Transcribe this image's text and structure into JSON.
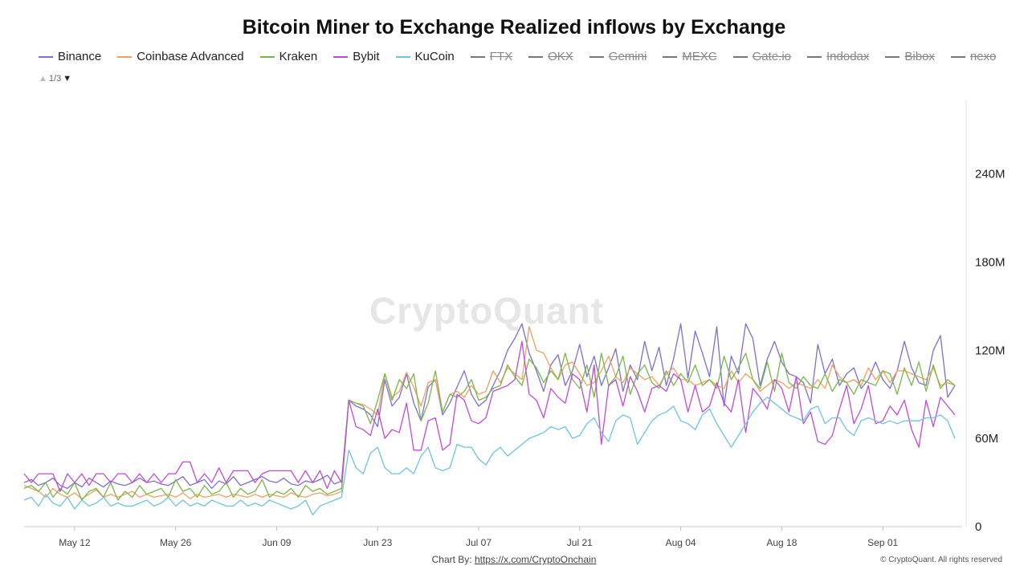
{
  "title": "Bitcoin Miner to Exchange Realized inflows by Exchange",
  "legend": [
    {
      "name": "Binance",
      "color": "#7b6fd6",
      "active": true
    },
    {
      "name": "Coinbase Advanced",
      "color": "#f0a060",
      "active": true
    },
    {
      "name": "Kraken",
      "color": "#78b848",
      "active": true
    },
    {
      "name": "Bybit",
      "color": "#c04ad8",
      "active": true
    },
    {
      "name": "KuCoin",
      "color": "#6cc4e0",
      "active": true
    },
    {
      "name": "FTX",
      "color": "#777777",
      "active": false
    },
    {
      "name": "OKX",
      "color": "#777777",
      "active": false
    },
    {
      "name": "Gemini",
      "color": "#777777",
      "active": false
    },
    {
      "name": "MEXC",
      "color": "#777777",
      "active": false
    },
    {
      "name": "Gate.io",
      "color": "#777777",
      "active": false
    },
    {
      "name": "Indodax",
      "color": "#777777",
      "active": false
    },
    {
      "name": "Bibox",
      "color": "#777777",
      "active": false
    },
    {
      "name": "nexo",
      "color": "#777777",
      "active": false
    }
  ],
  "pager": {
    "text": "1/3",
    "up_icon": "triangle-up-icon",
    "down_icon": "triangle-down-icon"
  },
  "watermark": "CryptoQuant",
  "footer": {
    "credit_prefix": "Chart By:",
    "credit_link": "https://x.com/CryptoOnchain",
    "copyright": "© CryptoQuant. All rights reserved"
  },
  "chart_data": {
    "type": "line",
    "title": "Bitcoin Miner to Exchange Realized inflows by Exchange",
    "x_ticks": [
      "May 12",
      "May 26",
      "Jun 09",
      "Jun 23",
      "Jul 07",
      "Jul 21",
      "Aug 04",
      "Aug 18",
      "Sep 01"
    ],
    "x_tick_days": [
      7,
      21,
      35,
      49,
      63,
      77,
      91,
      105,
      119
    ],
    "x_range_days": [
      0,
      130
    ],
    "y_ticks": [
      "0",
      "60M",
      "120M",
      "180M",
      "240M"
    ],
    "y_tick_values": [
      0,
      60,
      120,
      180,
      240
    ],
    "ylim": [
      0,
      290
    ],
    "y_unit": "M",
    "series": [
      {
        "name": "Binance",
        "color": "#7b6fd6",
        "x_step_days": 1,
        "x_start_day": 0,
        "values": [
          30,
          32,
          28,
          30,
          33,
          28,
          26,
          30,
          27,
          33,
          30,
          27,
          31,
          29,
          28,
          30,
          33,
          30,
          31,
          29,
          28,
          31,
          34,
          28,
          30,
          32,
          26,
          31,
          29,
          34,
          28,
          30,
          32,
          34,
          31,
          30,
          33,
          29,
          28,
          31,
          30,
          32,
          35,
          29,
          31,
          86,
          82,
          80,
          76,
          68,
          100,
          82,
          88,
          104,
          84,
          72,
          95,
          100,
          76,
          84,
          95,
          106,
          90,
          82,
          86,
          96,
          106,
          120,
          128,
          138,
          118,
          106,
          92,
          110,
          117,
          96,
          106,
          124,
          102,
          116,
          96,
          108,
          121,
          92,
          110,
          100,
          126,
          106,
          122,
          96,
          114,
          138,
          101,
          133,
          118,
          102,
          136,
          82,
          116,
          104,
          138,
          128,
          96,
          114,
          126,
          112,
          104,
          102,
          98,
          84,
          124,
          104,
          114,
          96,
          104,
          108,
          94,
          100,
          112,
          100,
          94,
          106,
          126,
          108,
          98,
          96,
          120,
          130,
          88,
          96
        ],
        "note_excluded": "Individual values below are approximate readings from the plot"
      },
      {
        "name": "Coinbase Advanced",
        "color": "#f0a060",
        "x_step_days": 1,
        "x_start_day": 0,
        "values": [
          28,
          26,
          24,
          20,
          26,
          22,
          20,
          23,
          19,
          22,
          25,
          20,
          22,
          20,
          22,
          24,
          20,
          22,
          20,
          21,
          22,
          20,
          23,
          19,
          22,
          20,
          21,
          22,
          20,
          22,
          21,
          20,
          22,
          20,
          22,
          21,
          20,
          23,
          21,
          20,
          22,
          23,
          21,
          22,
          24,
          86,
          84,
          83,
          80,
          76,
          104,
          88,
          92,
          105,
          95,
          82,
          98,
          100,
          78,
          90,
          92,
          88,
          96,
          90,
          92,
          106,
          98,
          108,
          104,
          100,
          136,
          120,
          118,
          108,
          100,
          110,
          112,
          104,
          96,
          98,
          106,
          116,
          102,
          98,
          108,
          104,
          100,
          102,
          96,
          104,
          108,
          100,
          100,
          96,
          98,
          100,
          96,
          94,
          106,
          98,
          104,
          100,
          92,
          96,
          100,
          98,
          94,
          98,
          96,
          94,
          100,
          94,
          110,
          102,
          98,
          100,
          96,
          108,
          100,
          106,
          98,
          106,
          106,
          104,
          102,
          100,
          108,
          96,
          98,
          96
        ],
        "note_excluded": "approximate"
      },
      {
        "name": "Kraken",
        "color": "#78b848",
        "x_step_days": 1,
        "x_start_day": 0,
        "values": [
          26,
          28,
          24,
          30,
          20,
          26,
          22,
          30,
          18,
          24,
          26,
          20,
          30,
          18,
          24,
          20,
          28,
          22,
          24,
          26,
          20,
          32,
          24,
          26,
          20,
          28,
          22,
          24,
          30,
          20,
          26,
          22,
          24,
          32,
          20,
          24,
          22,
          26,
          20,
          28,
          24,
          26,
          22,
          24,
          26,
          86,
          84,
          82,
          70,
          86,
          104,
          86,
          100,
          94,
          104,
          72,
          84,
          106,
          78,
          90,
          88,
          92,
          100,
          86,
          88,
          94,
          96,
          110,
          102,
          96,
          114,
          108,
          98,
          106,
          100,
          118,
          100,
          94,
          110,
          88,
          118,
          96,
          102,
          116,
          90,
          104,
          110,
          98,
          94,
          106,
          96,
          104,
          98,
          110,
          96,
          100,
          94,
          116,
          100,
          108,
          118,
          100,
          94,
          112,
          92,
          118,
          98,
          94,
          102,
          96,
          94,
          104,
          92,
          100,
          98,
          90,
          100,
          98,
          96,
          106,
          104,
          90,
          108,
          96,
          112,
          92,
          110,
          94,
          100,
          96
        ],
        "note_excluded": "approximate"
      },
      {
        "name": "Bybit",
        "color": "#c04ad8",
        "x_step_days": 1,
        "x_start_day": 0,
        "values": [
          36,
          30,
          36,
          36,
          36,
          24,
          36,
          30,
          36,
          28,
          36,
          36,
          30,
          36,
          36,
          30,
          36,
          30,
          36,
          30,
          36,
          36,
          44,
          44,
          30,
          36,
          30,
          40,
          30,
          38,
          38,
          38,
          30,
          36,
          38,
          38,
          38,
          38,
          30,
          38,
          30,
          38,
          26,
          38,
          30,
          86,
          68,
          66,
          62,
          80,
          60,
          66,
          64,
          84,
          52,
          52,
          72,
          74,
          52,
          56,
          90,
          86,
          72,
          70,
          74,
          92,
          94,
          96,
          100,
          126,
          90,
          86,
          74,
          94,
          88,
          84,
          104,
          100,
          78,
          110,
          56,
          96,
          100,
          82,
          102,
          92,
          78,
          94,
          96,
          92,
          104,
          100,
          78,
          96,
          78,
          82,
          98,
          84,
          78,
          100,
          64,
          94,
          88,
          80,
          100,
          94,
          78,
          102,
          70,
          78,
          58,
          56,
          62,
          80,
          96,
          70,
          80,
          96,
          70,
          72,
          82,
          76,
          86,
          66,
          54,
          86,
          68,
          88,
          82,
          76
        ],
        "note_excluded": "approximate"
      },
      {
        "name": "KuCoin",
        "color": "#6cc4e0",
        "x_step_days": 1,
        "x_start_day": 0,
        "values": [
          18,
          20,
          14,
          22,
          16,
          14,
          20,
          12,
          18,
          14,
          16,
          20,
          14,
          16,
          14,
          14,
          16,
          18,
          14,
          16,
          20,
          14,
          18,
          14,
          16,
          14,
          18,
          16,
          14,
          14,
          18,
          14,
          16,
          14,
          18,
          16,
          14,
          12,
          14,
          18,
          8,
          14,
          16,
          18,
          20,
          52,
          40,
          36,
          50,
          54,
          40,
          36,
          36,
          40,
          36,
          48,
          54,
          40,
          38,
          40,
          56,
          54,
          54,
          46,
          42,
          50,
          54,
          48,
          52,
          56,
          60,
          62,
          64,
          68,
          66,
          68,
          60,
          62,
          70,
          74,
          64,
          58,
          72,
          76,
          74,
          56,
          64,
          72,
          76,
          78,
          82,
          72,
          70,
          66,
          76,
          80,
          70,
          62,
          54,
          62,
          70,
          78,
          84,
          88,
          84,
          80,
          76,
          74,
          72,
          80,
          82,
          70,
          74,
          74,
          66,
          62,
          72,
          74,
          72,
          70,
          72,
          70,
          72,
          72,
          72,
          74,
          74,
          76,
          72,
          60
        ],
        "note_excluded": "approximate"
      }
    ],
    "grid": false,
    "legend_position": "top"
  }
}
